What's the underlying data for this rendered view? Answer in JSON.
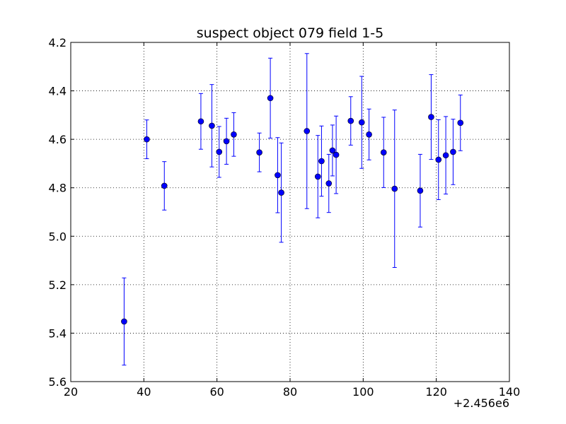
{
  "chart_data": {
    "type": "scatter",
    "title": "suspect object 079 field 1-5",
    "xlabel": "",
    "ylabel": "",
    "x_offset_label": "+2.456e6",
    "xlim": [
      20,
      140
    ],
    "ylim": [
      5.6,
      4.2
    ],
    "y_inverted": true,
    "grid": true,
    "x_ticks": [
      "20",
      "40",
      "60",
      "80",
      "100",
      "120",
      "140"
    ],
    "y_ticks": [
      "4.2",
      "4.4",
      "4.6",
      "4.8",
      "5.0",
      "5.2",
      "5.4",
      "5.6"
    ],
    "series": [
      {
        "color": "#0000ff",
        "marker": "circle",
        "points": [
          {
            "x": 34.6,
            "y": 5.352,
            "err": 0.18
          },
          {
            "x": 40.8,
            "y": 4.6,
            "err": 0.08
          },
          {
            "x": 45.6,
            "y": 4.792,
            "err": 0.1
          },
          {
            "x": 55.6,
            "y": 4.526,
            "err": 0.115
          },
          {
            "x": 58.6,
            "y": 4.544,
            "err": 0.17
          },
          {
            "x": 60.6,
            "y": 4.652,
            "err": 0.105
          },
          {
            "x": 62.6,
            "y": 4.608,
            "err": 0.095
          },
          {
            "x": 64.6,
            "y": 4.58,
            "err": 0.09
          },
          {
            "x": 71.6,
            "y": 4.654,
            "err": 0.08
          },
          {
            "x": 74.6,
            "y": 4.43,
            "err": 0.165
          },
          {
            "x": 76.6,
            "y": 4.748,
            "err": 0.155
          },
          {
            "x": 77.6,
            "y": 4.82,
            "err": 0.205
          },
          {
            "x": 84.6,
            "y": 4.566,
            "err": 0.32
          },
          {
            "x": 87.6,
            "y": 4.754,
            "err": 0.17
          },
          {
            "x": 88.6,
            "y": 4.69,
            "err": 0.145
          },
          {
            "x": 90.6,
            "y": 4.782,
            "err": 0.12
          },
          {
            "x": 91.6,
            "y": 4.646,
            "err": 0.105
          },
          {
            "x": 92.6,
            "y": 4.664,
            "err": 0.16
          },
          {
            "x": 96.6,
            "y": 4.524,
            "err": 0.1
          },
          {
            "x": 99.6,
            "y": 4.53,
            "err": 0.19
          },
          {
            "x": 101.6,
            "y": 4.58,
            "err": 0.105
          },
          {
            "x": 105.6,
            "y": 4.654,
            "err": 0.145
          },
          {
            "x": 108.6,
            "y": 4.804,
            "err": 0.325
          },
          {
            "x": 115.6,
            "y": 4.812,
            "err": 0.15
          },
          {
            "x": 118.6,
            "y": 4.508,
            "err": 0.175
          },
          {
            "x": 120.6,
            "y": 4.684,
            "err": 0.165
          },
          {
            "x": 122.6,
            "y": 4.666,
            "err": 0.16
          },
          {
            "x": 124.6,
            "y": 4.652,
            "err": 0.135
          },
          {
            "x": 126.6,
            "y": 4.532,
            "err": 0.115
          }
        ]
      }
    ]
  }
}
